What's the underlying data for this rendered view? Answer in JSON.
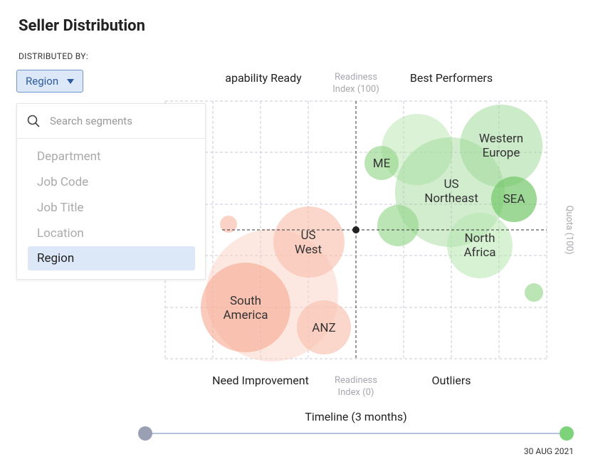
{
  "header": {
    "title": "Seller Distribution"
  },
  "filter": {
    "label": "DISTRIBUTED BY:",
    "selected": "Region"
  },
  "dropdown": {
    "search_placeholder": "Search segments",
    "options": [
      "Department",
      "Job Code",
      "Job Title",
      "Location",
      "Region"
    ]
  },
  "chart": {
    "quadrants": {
      "top_left": "apability Ready",
      "top_right": "Best Performers",
      "bottom_left": "Need Improvement",
      "bottom_right": "Outliers"
    },
    "x_axis_top": [
      "Readiness",
      "Index (100)"
    ],
    "x_axis_bottom": [
      "Readiness",
      "Index (0)"
    ],
    "y_axis_right": "Quota (100)",
    "bubble_labels": {
      "me": [
        "ME"
      ],
      "us_northeast": [
        "US",
        "Northeast"
      ],
      "western_europe": [
        "Western",
        "Europe"
      ],
      "sea": [
        "SEA"
      ],
      "north_africa": [
        "North",
        "Africa"
      ],
      "us_west": [
        "US",
        "West"
      ],
      "south_america": [
        "South",
        "America"
      ],
      "anz": [
        "ANZ"
      ]
    }
  },
  "timeline": {
    "label": "Timeline (3 months)",
    "end_date": "30 AUG 2021"
  }
}
